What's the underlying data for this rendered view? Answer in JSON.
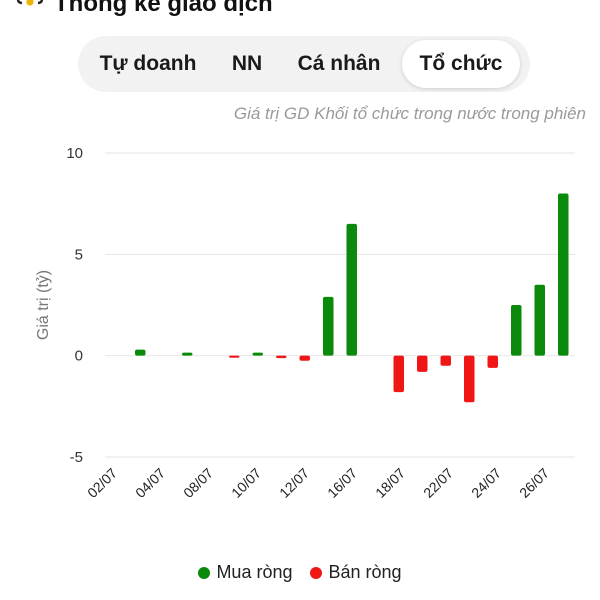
{
  "header": {
    "title": "Thống kê giao dịch",
    "icon": "trophy-icon"
  },
  "tabs": [
    {
      "label": "Tự doanh",
      "active": false
    },
    {
      "label": "NN",
      "active": false
    },
    {
      "label": "Cá nhân",
      "active": false
    },
    {
      "label": "Tổ chức",
      "active": true
    }
  ],
  "colors": {
    "positive": "#0a8a0a",
    "negative": "#f01616",
    "grid": "#e6e6e6"
  },
  "chart_data": {
    "type": "bar",
    "title": "Giá trị GD Khối tổ chức trong nước trong phiên",
    "ylabel": "Giá trị (tỷ)",
    "xlabel": "",
    "ylim": [
      -5,
      10
    ],
    "yticks": [
      10,
      5,
      0,
      -5
    ],
    "xtick_labels": [
      "02/07",
      "04/07",
      "08/07",
      "10/07",
      "12/07",
      "16/07",
      "18/07",
      "22/07",
      "24/07",
      "26/07"
    ],
    "series": [
      {
        "name": "Mua ròng",
        "color": "#0a8a0a"
      },
      {
        "name": "Bán ròng",
        "color": "#f01616"
      }
    ],
    "values": [
      0,
      0.3,
      0,
      0.15,
      0,
      -0.1,
      0.15,
      -0.12,
      -0.25,
      2.9,
      6.5,
      0,
      -1.8,
      -0.8,
      -0.5,
      -2.3,
      -0.6,
      2.5,
      3.5,
      8.0
    ],
    "grid": true,
    "legend_position": "bottom"
  }
}
